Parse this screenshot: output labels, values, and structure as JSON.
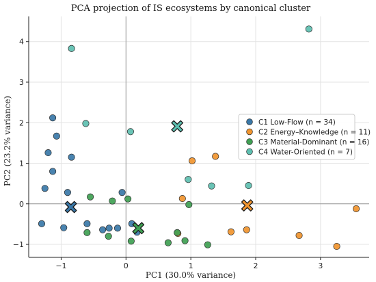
{
  "chart_data": {
    "type": "scatter",
    "title": "PCA projection of IS ecosystems by canonical cluster",
    "xlabel": "PC1 (30.0% variance)",
    "ylabel": "PC2 (23.2% variance)",
    "xlim": [
      -1.5,
      3.75
    ],
    "ylim": [
      -1.32,
      4.62
    ],
    "xticks": [
      -1,
      0,
      1,
      2,
      3
    ],
    "yticks": [
      -1,
      0,
      1,
      2,
      3,
      4
    ],
    "xtick_labels": [
      "−1",
      "0",
      "1",
      "2",
      "3"
    ],
    "ytick_labels": [
      "−1",
      "0",
      "1",
      "2",
      "3",
      "4"
    ],
    "grid": true,
    "zero_lines": true,
    "legend_position": "center-right",
    "series": [
      {
        "name": "C1 Low-Flow (n = 34)",
        "color": "#3a78a8",
        "points": [
          [
            -1.13,
            2.12
          ],
          [
            -1.07,
            1.67
          ],
          [
            -1.2,
            1.26
          ],
          [
            -1.13,
            0.8
          ],
          [
            -0.84,
            1.15
          ],
          [
            -1.25,
            0.38
          ],
          [
            -0.9,
            0.28
          ],
          [
            -0.06,
            0.28
          ],
          [
            -1.3,
            -0.49
          ],
          [
            -0.96,
            -0.59
          ],
          [
            -0.6,
            -0.49
          ],
          [
            -0.36,
            -0.64
          ],
          [
            -0.26,
            -0.6
          ],
          [
            -0.13,
            -0.6
          ],
          [
            0.09,
            -0.49
          ],
          [
            0.17,
            -0.7
          ]
        ],
        "centroid": [
          -0.85,
          -0.08
        ]
      },
      {
        "name": "C2 Energy–Knowledge (n = 11)",
        "color": "#f0942e",
        "points": [
          [
            1.02,
            1.06
          ],
          [
            1.38,
            1.17
          ],
          [
            0.87,
            0.13
          ],
          [
            0.8,
            -0.73
          ],
          [
            1.62,
            -0.69
          ],
          [
            1.86,
            -0.64
          ],
          [
            2.67,
            -0.78
          ],
          [
            3.25,
            -1.05
          ],
          [
            3.55,
            -0.12
          ]
        ],
        "centroid": [
          1.87,
          -0.04
        ]
      },
      {
        "name": "C3 Material-Dominant (n = 16)",
        "color": "#3fa053",
        "points": [
          [
            -0.55,
            0.17
          ],
          [
            -0.21,
            0.07
          ],
          [
            0.03,
            0.12
          ],
          [
            0.97,
            -0.02
          ],
          [
            -0.6,
            -0.71
          ],
          [
            -0.27,
            -0.8
          ],
          [
            0.08,
            -0.92
          ],
          [
            0.65,
            -0.96
          ],
          [
            0.91,
            -0.91
          ],
          [
            0.79,
            -0.71
          ],
          [
            1.26,
            -1.01
          ]
        ],
        "centroid": [
          0.19,
          -0.6
        ]
      },
      {
        "name": "C4 Water-Oriented (n = 7)",
        "color": "#5dbfb0",
        "points": [
          [
            -0.84,
            3.83
          ],
          [
            2.82,
            4.31
          ],
          [
            -0.62,
            1.98
          ],
          [
            0.07,
            1.78
          ],
          [
            0.96,
            0.6
          ],
          [
            1.32,
            0.44
          ],
          [
            1.89,
            0.45
          ]
        ],
        "centroid": [
          0.79,
          1.91
        ]
      }
    ]
  }
}
